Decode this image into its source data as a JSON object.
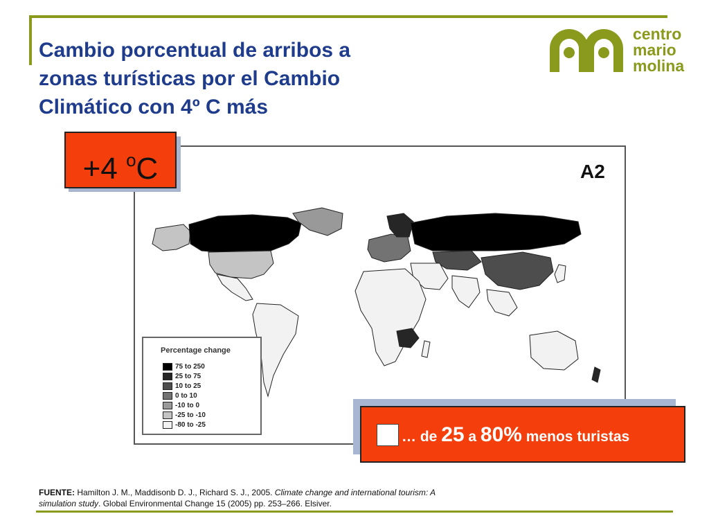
{
  "title_lines": [
    "Cambio porcentual de arribos a",
    "zonas turísticas por el Cambio",
    "Climático con 4º C más"
  ],
  "logo": {
    "lines": [
      "centro",
      "mario",
      "molina"
    ],
    "color": "#8a9a1c"
  },
  "temperature": {
    "value": "+4 ",
    "degree": "o",
    "unit": "C"
  },
  "scenario": "A2",
  "legend": {
    "title": "Percentage change",
    "items": [
      {
        "label": "75 to 250",
        "color": "#000000"
      },
      {
        "label": "25 to  75",
        "color": "#262626"
      },
      {
        "label": "10 to  25",
        "color": "#4d4d4d"
      },
      {
        "label": "0 to  10",
        "color": "#737373"
      },
      {
        "label": "-10 to    0",
        "color": "#999999"
      },
      {
        "label": "-25 to -10",
        "color": "#c4c4c4"
      },
      {
        "label": "-80 to -25",
        "color": "#f2f2f2"
      }
    ]
  },
  "callout": {
    "prefix": "… de ",
    "v1": "25",
    "mid": " a ",
    "v2": "80%",
    "suffix": " menos turistas"
  },
  "source": {
    "label": "FUENTE:",
    "authors": " Hamilton J. M., Maddisonb D. J., Richard S. J., 2005. ",
    "title": "Climate change and international tourism: A simulation study",
    "rest": ". Global Environmental Change 15 (2005) pp. 253–266. Elsiver."
  },
  "colors": {
    "title": "#1f3c8c",
    "accent_box": "#f43f0c",
    "rule": "#8a9a1c"
  }
}
